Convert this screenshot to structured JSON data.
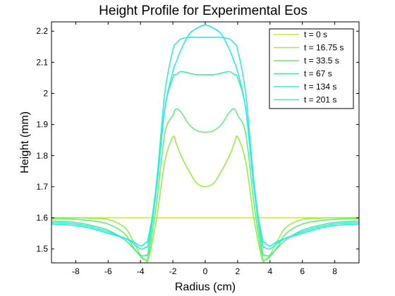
{
  "chart_data": {
    "type": "line",
    "title": "Height Profile for Experimental Eos",
    "xlabel": "Radius (cm)",
    "ylabel": "Height (mm)",
    "xlim": [
      -9.5,
      9.5
    ],
    "ylim": [
      1.455,
      2.23
    ],
    "xticks": [
      -8,
      -6,
      -4,
      -2,
      0,
      2,
      4,
      6,
      8
    ],
    "yticks": [
      1.5,
      1.6,
      1.7,
      1.8,
      1.9,
      2.0,
      2.1,
      2.2
    ],
    "xtick_labels": [
      "-8",
      "-6",
      "-4",
      "-2",
      "0",
      "2",
      "4",
      "6",
      "8"
    ],
    "ytick_labels": [
      "1.5",
      "1.6",
      "1.7",
      "1.8",
      "1.9",
      "2",
      "2.1",
      "2.2"
    ],
    "grid": false,
    "legend_position": "top-right",
    "x": [
      -9.5,
      -8,
      -7,
      -6,
      -5,
      -4.5,
      -4,
      -3.7,
      -3.5,
      -3,
      -2.5,
      -2,
      -1.8,
      -1.5,
      -1,
      -0.5,
      0,
      0.5,
      1,
      1.5,
      1.8,
      2,
      2.5,
      3,
      3.5,
      3.7,
      4,
      4.5,
      5,
      6,
      7,
      8,
      9.5
    ],
    "series": [
      {
        "name": "t = 0 s",
        "color": "#ccee22",
        "values": [
          1.6,
          1.6,
          1.6,
          1.6,
          1.6,
          1.6,
          1.6,
          1.6,
          1.6,
          1.6,
          1.6,
          1.6,
          1.6,
          1.6,
          1.6,
          1.6,
          1.6,
          1.6,
          1.6,
          1.6,
          1.6,
          1.6,
          1.6,
          1.6,
          1.6,
          1.6,
          1.6,
          1.6,
          1.6,
          1.6,
          1.6,
          1.6,
          1.6
        ]
      },
      {
        "name": "t = 16.75 s",
        "color": "#99ee44",
        "values": [
          1.6,
          1.6,
          1.598,
          1.595,
          1.57,
          1.53,
          1.48,
          1.465,
          1.47,
          1.6,
          1.78,
          1.86,
          1.84,
          1.8,
          1.75,
          1.71,
          1.7,
          1.71,
          1.75,
          1.8,
          1.84,
          1.86,
          1.78,
          1.6,
          1.47,
          1.465,
          1.48,
          1.53,
          1.57,
          1.595,
          1.598,
          1.6,
          1.6
        ]
      },
      {
        "name": "t = 33.5 s",
        "color": "#66ee77",
        "values": [
          1.597,
          1.595,
          1.59,
          1.58,
          1.55,
          1.51,
          1.475,
          1.465,
          1.48,
          1.65,
          1.87,
          1.93,
          1.95,
          1.94,
          1.9,
          1.88,
          1.875,
          1.88,
          1.9,
          1.94,
          1.95,
          1.93,
          1.87,
          1.65,
          1.48,
          1.465,
          1.475,
          1.51,
          1.55,
          1.58,
          1.59,
          1.595,
          1.597
        ]
      },
      {
        "name": "t = 67 s",
        "color": "#44eea0",
        "values": [
          1.59,
          1.585,
          1.575,
          1.56,
          1.53,
          1.505,
          1.48,
          1.48,
          1.5,
          1.7,
          1.95,
          2.05,
          2.06,
          2.07,
          2.065,
          2.06,
          2.06,
          2.06,
          2.065,
          2.07,
          2.06,
          2.05,
          1.95,
          1.7,
          1.5,
          1.48,
          1.48,
          1.505,
          1.53,
          1.56,
          1.575,
          1.585,
          1.59
        ]
      },
      {
        "name": "t = 134 s",
        "color": "#33eecc",
        "values": [
          1.585,
          1.58,
          1.57,
          1.555,
          1.535,
          1.52,
          1.5,
          1.505,
          1.525,
          1.72,
          2.0,
          2.14,
          2.16,
          2.175,
          2.18,
          2.18,
          2.18,
          2.18,
          2.18,
          2.175,
          2.16,
          2.14,
          2.0,
          1.72,
          1.525,
          1.505,
          1.5,
          1.52,
          1.535,
          1.555,
          1.57,
          1.58,
          1.585
        ]
      },
      {
        "name": "t = 201 s",
        "color": "#22eeee",
        "values": [
          1.58,
          1.575,
          1.565,
          1.55,
          1.535,
          1.525,
          1.51,
          1.52,
          1.54,
          1.7,
          1.95,
          2.07,
          2.1,
          2.14,
          2.19,
          2.21,
          2.22,
          2.21,
          2.19,
          2.14,
          2.1,
          2.07,
          1.95,
          1.7,
          1.54,
          1.52,
          1.51,
          1.525,
          1.535,
          1.55,
          1.565,
          1.575,
          1.58
        ]
      }
    ]
  }
}
